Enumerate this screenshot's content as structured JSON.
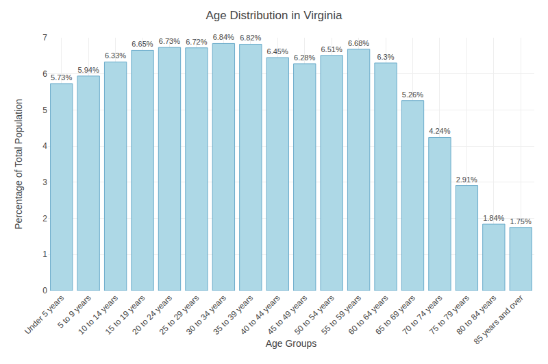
{
  "chart_data": {
    "type": "bar",
    "title": "Age Distribution in Virginia",
    "xlabel": "Age Groups",
    "ylabel": "Percentage of Total Population",
    "categories": [
      "Under 5 years",
      "5 to 9 years",
      "10 to 14 years",
      "15 to 19 years",
      "20 to 24 years",
      "25 to 29 years",
      "30 to 34 years",
      "35 to 39 years",
      "40 to 44 years",
      "45 to 49 years",
      "50 to 54 years",
      "55 to 59 years",
      "60 to 64 years",
      "65 to 69 years",
      "70 to 74 years",
      "75 to 79 years",
      "80 to 84 years",
      "85 years and over"
    ],
    "values": [
      5.73,
      5.94,
      6.33,
      6.65,
      6.73,
      6.72,
      6.84,
      6.82,
      6.45,
      6.28,
      6.51,
      6.68,
      6.3,
      5.26,
      4.24,
      2.91,
      1.84,
      1.75
    ],
    "value_labels": [
      "5.73%",
      "5.94%",
      "6.33%",
      "6.65%",
      "6.73%",
      "6.72%",
      "6.84%",
      "6.82%",
      "6.45%",
      "6.28%",
      "6.51%",
      "6.68%",
      "6.3%",
      "5.26%",
      "4.24%",
      "2.91%",
      "1.84%",
      "1.75%"
    ],
    "data_labels": true,
    "color": "#add8e6",
    "ylim": [
      0,
      7
    ],
    "yticks": [
      0,
      1,
      2,
      3,
      4,
      5,
      6,
      7
    ],
    "grid": true
  }
}
